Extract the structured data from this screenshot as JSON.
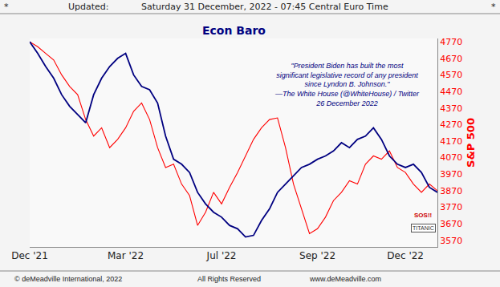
{
  "chart_data": {
    "type": "line",
    "title": "Econ Baro",
    "header": [
      "*",
      "Updated:",
      "Saturday 31 December, 2022 - 07:45 Central Euro Time",
      "*"
    ],
    "footer": [
      "© deMeadville International, 2022",
      "All Rights Reserved",
      "www.deMeadville.com"
    ],
    "quote": [
      "\"President Biden has built the most",
      "significant legislative record of any president",
      "since Lyndon B. Johnson.\"",
      "—The White House (@WhiteHouse) / Twitter",
      "26 December 2022"
    ],
    "annotations": [
      "SOS!!",
      "TITANIC"
    ],
    "ylabel": "S&P 500",
    "categories": [
      "Dec '21",
      null,
      null,
      null,
      null,
      null,
      null,
      null,
      null,
      null,
      null,
      null,
      "Mar '22",
      null,
      null,
      null,
      null,
      null,
      null,
      null,
      null,
      null,
      null,
      null,
      "Jul '22",
      null,
      null,
      null,
      null,
      null,
      null,
      null,
      null,
      null,
      null,
      null,
      "Sep '22",
      null,
      null,
      null,
      null,
      null,
      null,
      null,
      null,
      null,
      null,
      "Dec '22",
      null,
      null,
      null,
      null
    ],
    "series": [
      {
        "name": "S&P 500",
        "color": "#ff0000",
        "values": [
          4770,
          4740,
          4700,
          4660,
          4570,
          4500,
          4450,
          4300,
          4200,
          4250,
          4130,
          4180,
          4250,
          4350,
          4400,
          4300,
          4130,
          4010,
          4030,
          3910,
          3840,
          3660,
          3740,
          3860,
          3790,
          3890,
          3980,
          4080,
          4180,
          4250,
          4300,
          4310,
          4130,
          3910,
          3760,
          3610,
          3640,
          3710,
          3810,
          3860,
          3930,
          3910,
          4030,
          4080,
          4060,
          4110,
          4010,
          3980,
          3910,
          3860,
          3910,
          3870
        ]
      },
      {
        "name": "Econ Baro",
        "color": "#000080",
        "values": [
          4770,
          4700,
          4620,
          4550,
          4450,
          4380,
          4330,
          4280,
          4450,
          4550,
          4620,
          4670,
          4700,
          4570,
          4500,
          4480,
          4400,
          4200,
          4060,
          4030,
          3980,
          3860,
          3790,
          3740,
          3710,
          3660,
          3640,
          3590,
          3600,
          3690,
          3760,
          3860,
          3910,
          3960,
          4010,
          4030,
          4060,
          4080,
          4110,
          4160,
          4130,
          4180,
          4200,
          4250,
          4180,
          4080,
          4030,
          4010,
          4030,
          3980,
          3890,
          3860
        ]
      }
    ],
    "ylim": [
      3530,
      4790
    ],
    "yticks": [
      3570,
      3670,
      3770,
      3870,
      3970,
      4070,
      4170,
      4270,
      4370,
      4470,
      4570,
      4670,
      4770
    ],
    "grid": false
  }
}
